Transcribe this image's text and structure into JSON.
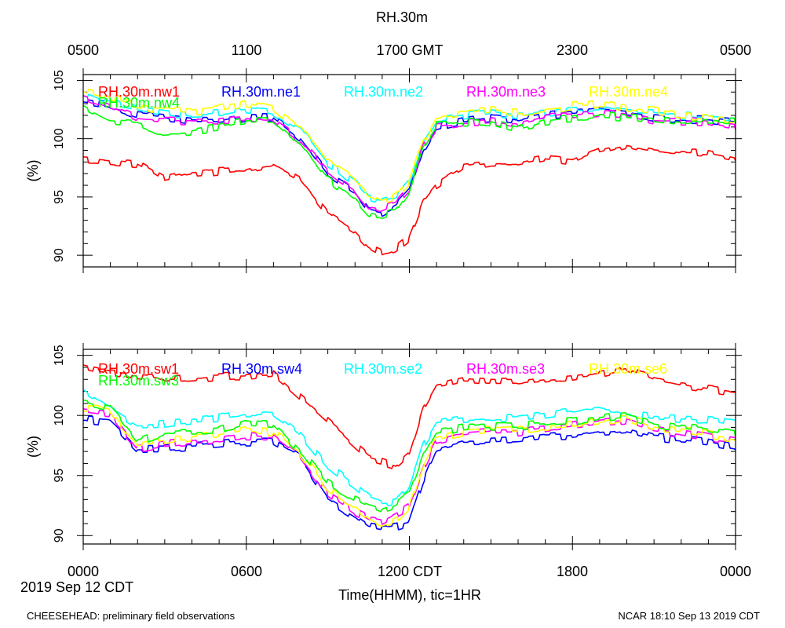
{
  "title": "RH.30m",
  "top_axis": {
    "ticks": [
      "0500",
      "1100",
      "1700 GMT",
      "2300",
      "0500"
    ]
  },
  "bottom_axis": {
    "ticks": [
      "0000",
      "0600",
      "1200 CDT",
      "1800",
      "0000"
    ],
    "date_label": "2019 Sep 12 CDT",
    "xlabel": "Time(HHMM), tic=1HR"
  },
  "footer": {
    "left": "CHEESEHEAD: preliminary field observations",
    "right": "NCAR 18:10 Sep 13 2019 CDT"
  },
  "chart_data": [
    {
      "type": "line",
      "panel": "top",
      "ylabel": "(%)",
      "xlim": [
        0,
        24
      ],
      "ylim": [
        89,
        105.5
      ],
      "yticks": [
        90,
        95,
        100,
        105
      ],
      "x": [
        0,
        1,
        2,
        3,
        4,
        5,
        6,
        7,
        8,
        9,
        10,
        10.5,
        11,
        11.5,
        12,
        12.5,
        13,
        14,
        15,
        16,
        17,
        18,
        19,
        20,
        21,
        22,
        23,
        24
      ],
      "series": [
        {
          "name": "RH.30m.nw1",
          "color": "#ff0000",
          "values": [
            98.2,
            98.0,
            97.8,
            96.5,
            97.0,
            97.2,
            97.3,
            97.8,
            96.5,
            93.5,
            92.0,
            90.8,
            90.2,
            90.6,
            91.5,
            94.5,
            96.0,
            97.5,
            97.8,
            97.8,
            98.3,
            98.0,
            99.0,
            99.5,
            99.0,
            98.8,
            98.7,
            98.2
          ]
        },
        {
          "name": "RH.30m.ne1",
          "color": "#0000ff",
          "values": [
            103.2,
            102.8,
            102.0,
            101.8,
            101.5,
            101.5,
            101.8,
            101.8,
            100.0,
            97.0,
            95.5,
            93.8,
            93.6,
            94.2,
            95.5,
            99.0,
            101.0,
            101.5,
            101.8,
            101.5,
            102.0,
            102.2,
            102.4,
            102.2,
            101.8,
            101.7,
            101.6,
            101.4
          ]
        },
        {
          "name": "RH.30m.ne2",
          "color": "#00ffff",
          "values": [
            104.0,
            103.2,
            102.5,
            102.2,
            102.0,
            102.2,
            102.5,
            102.2,
            100.8,
            97.8,
            96.2,
            95.0,
            94.8,
            95.2,
            96.5,
            99.5,
            101.5,
            102.0,
            102.3,
            102.0,
            102.2,
            102.5,
            102.6,
            102.3,
            102.2,
            102.0,
            101.8,
            101.8
          ]
        },
        {
          "name": "RH.30m.ne3",
          "color": "#ff00ff",
          "values": [
            103.6,
            102.8,
            101.8,
            101.6,
            101.5,
            101.5,
            101.8,
            101.6,
            99.8,
            97.2,
            95.5,
            94.2,
            94.0,
            94.5,
            95.8,
            99.2,
            101.0,
            101.3,
            101.5,
            101.2,
            101.8,
            102.0,
            102.2,
            102.0,
            101.5,
            101.5,
            101.4,
            101.0
          ]
        },
        {
          "name": "RH.30m.ne4",
          "color": "#ffff00",
          "values": [
            104.2,
            103.6,
            102.8,
            102.4,
            102.3,
            102.6,
            103.0,
            102.6,
            101.0,
            98.0,
            96.4,
            95.2,
            94.6,
            95.0,
            96.4,
            99.6,
            101.6,
            102.2,
            102.5,
            102.2,
            102.4,
            102.8,
            103.0,
            102.6,
            102.4,
            102.0,
            101.8,
            101.6
          ]
        },
        {
          "name": "RH.30m.nw4",
          "color": "#00ff00",
          "values": [
            102.6,
            101.5,
            101.3,
            100.5,
            100.6,
            101.0,
            101.5,
            101.6,
            99.5,
            96.5,
            94.8,
            93.5,
            93.4,
            93.8,
            95.5,
            99.4,
            101.2,
            101.4,
            101.4,
            100.8,
            101.5,
            101.8,
            102.0,
            101.8,
            101.6,
            101.4,
            101.6,
            101.5
          ]
        }
      ]
    },
    {
      "type": "line",
      "panel": "bottom",
      "ylabel": "(%)",
      "xlim": [
        0,
        24
      ],
      "ylim": [
        89.3,
        105.5
      ],
      "yticks": [
        90,
        95,
        100,
        105
      ],
      "x": [
        0,
        1,
        2,
        3,
        4,
        5,
        6,
        7,
        8,
        9,
        10,
        10.5,
        11,
        11.5,
        12,
        12.5,
        13,
        14,
        15,
        16,
        17,
        18,
        19,
        20,
        21,
        22,
        23,
        24
      ],
      "series": [
        {
          "name": "RH.30m.sw1",
          "color": "#ff0000",
          "values": [
            104.0,
            103.5,
            103.3,
            103.0,
            103.1,
            103.2,
            103.3,
            103.5,
            101.5,
            99.5,
            97.5,
            96.5,
            96.2,
            95.8,
            96.8,
            100.5,
            102.5,
            103.0,
            102.8,
            102.8,
            103.0,
            103.2,
            103.5,
            104.0,
            103.0,
            102.5,
            102.2,
            101.9
          ]
        },
        {
          "name": "RH.30m.sw4",
          "color": "#0000ff",
          "values": [
            99.7,
            99.4,
            97.2,
            97.2,
            97.4,
            97.6,
            97.8,
            97.8,
            96.5,
            93.0,
            91.6,
            90.8,
            90.6,
            90.7,
            91.0,
            94.5,
            97.2,
            97.8,
            97.8,
            97.9,
            98.2,
            98.3,
            98.6,
            98.8,
            98.2,
            98.0,
            97.8,
            97.4
          ]
        },
        {
          "name": "RH.30m.se2",
          "color": "#00ffff",
          "values": [
            101.8,
            100.5,
            99.2,
            99.3,
            99.5,
            99.8,
            100.2,
            100.2,
            98.4,
            95.8,
            94.2,
            93.2,
            92.8,
            92.9,
            94.0,
            97.5,
            99.4,
            99.7,
            99.8,
            99.8,
            100.0,
            100.3,
            100.5,
            100.2,
            99.8,
            99.7,
            99.6,
            99.3
          ]
        },
        {
          "name": "RH.30m.se3",
          "color": "#ff00ff",
          "values": [
            100.5,
            100.2,
            97.2,
            97.6,
            97.8,
            98.0,
            98.3,
            98.2,
            96.5,
            93.5,
            92.0,
            91.4,
            91.2,
            91.8,
            92.4,
            95.5,
            97.8,
            98.4,
            98.6,
            98.6,
            98.9,
            99.2,
            99.4,
            99.6,
            98.8,
            98.5,
            98.2,
            97.8
          ]
        },
        {
          "name": "RH.30m.se6",
          "color": "#ffff00",
          "values": [
            100.6,
            100.4,
            97.6,
            98.0,
            98.2,
            98.4,
            98.8,
            98.6,
            96.8,
            94.0,
            92.4,
            91.6,
            91.0,
            91.4,
            92.4,
            95.8,
            98.0,
            98.6,
            98.8,
            98.8,
            99.0,
            99.2,
            99.5,
            99.8,
            99.0,
            98.8,
            98.4,
            98.0
          ]
        },
        {
          "name": "RH.30m.sw3",
          "color": "#00ff00",
          "values": [
            101.1,
            100.6,
            97.8,
            98.6,
            98.7,
            98.8,
            99.5,
            99.3,
            97.0,
            94.4,
            93.0,
            92.5,
            92.1,
            92.5,
            93.4,
            96.5,
            98.6,
            99.0,
            99.1,
            99.1,
            99.3,
            99.5,
            99.8,
            100.0,
            99.3,
            99.0,
            98.8,
            98.5
          ]
        }
      ]
    }
  ]
}
